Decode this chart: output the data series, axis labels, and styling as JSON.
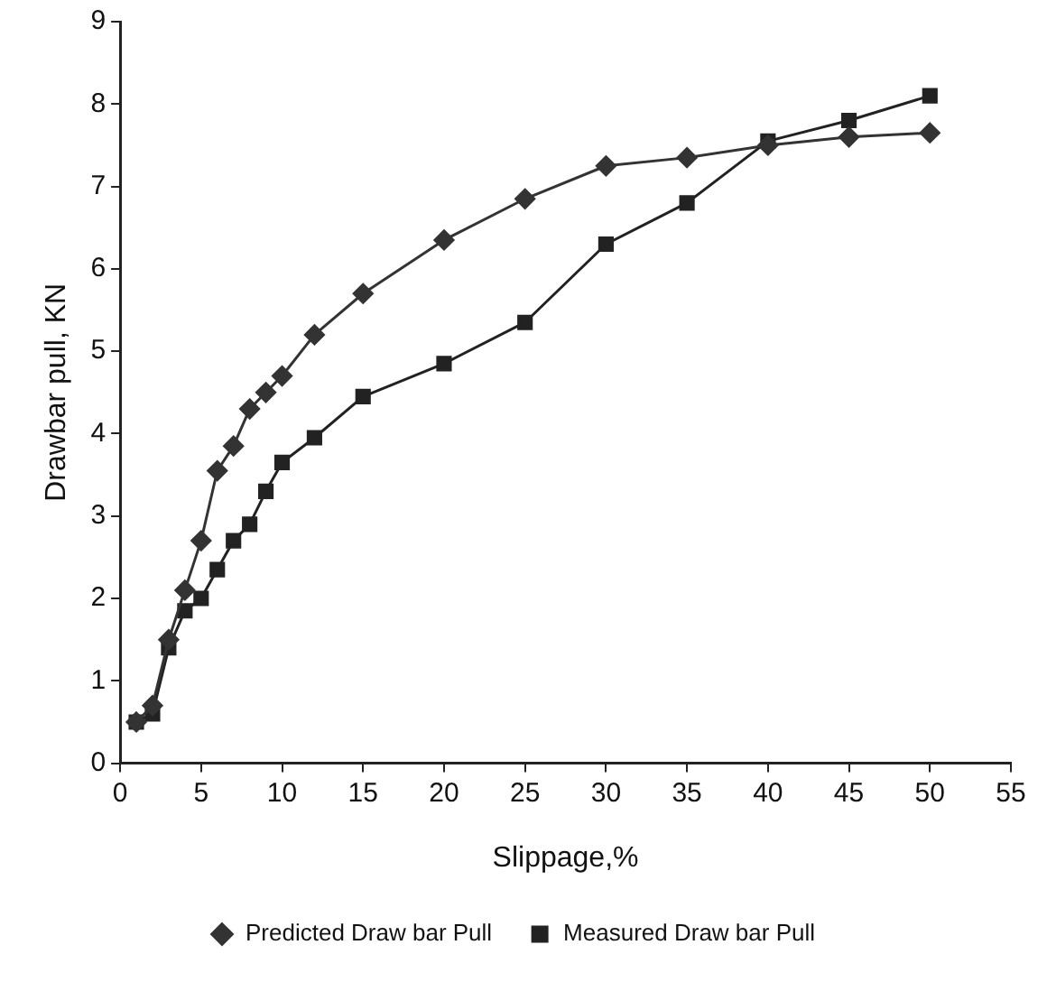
{
  "chart_data": {
    "type": "line",
    "xlabel": "Slippage,%",
    "ylabel": "Drawbar pull, KN",
    "xlim": [
      0,
      55
    ],
    "xticks": [
      0,
      5,
      10,
      15,
      20,
      25,
      30,
      35,
      40,
      45,
      50,
      55
    ],
    "ylim": [
      0,
      9
    ],
    "yticks": [
      0,
      1,
      2,
      3,
      4,
      5,
      6,
      7,
      8,
      9
    ],
    "grid": false,
    "legend": "bottom",
    "line_style": "solid",
    "series": [
      {
        "name": "Predicted Draw bar Pull",
        "color": "#333333",
        "marker": "diamond",
        "x": [
          1,
          2,
          3,
          4,
          5,
          6,
          7,
          8,
          9,
          10,
          12,
          15,
          20,
          25,
          30,
          35,
          40,
          45,
          50
        ],
        "values": [
          0.5,
          0.7,
          1.5,
          2.1,
          2.7,
          3.55,
          3.85,
          4.3,
          4.5,
          4.7,
          5.2,
          5.7,
          6.35,
          6.85,
          7.25,
          7.35,
          7.5,
          7.6,
          7.65
        ]
      },
      {
        "name": "Measured Draw bar Pull",
        "color": "#222222",
        "marker": "square",
        "x": [
          1,
          2,
          3,
          4,
          5,
          6,
          7,
          8,
          9,
          10,
          12,
          15,
          20,
          25,
          30,
          35,
          40,
          45,
          50
        ],
        "values": [
          0.5,
          0.6,
          1.4,
          1.85,
          2.0,
          2.35,
          2.7,
          2.9,
          3.3,
          3.65,
          3.95,
          4.45,
          4.85,
          5.35,
          6.3,
          6.8,
          7.55,
          7.8,
          8.1
        ]
      }
    ]
  }
}
